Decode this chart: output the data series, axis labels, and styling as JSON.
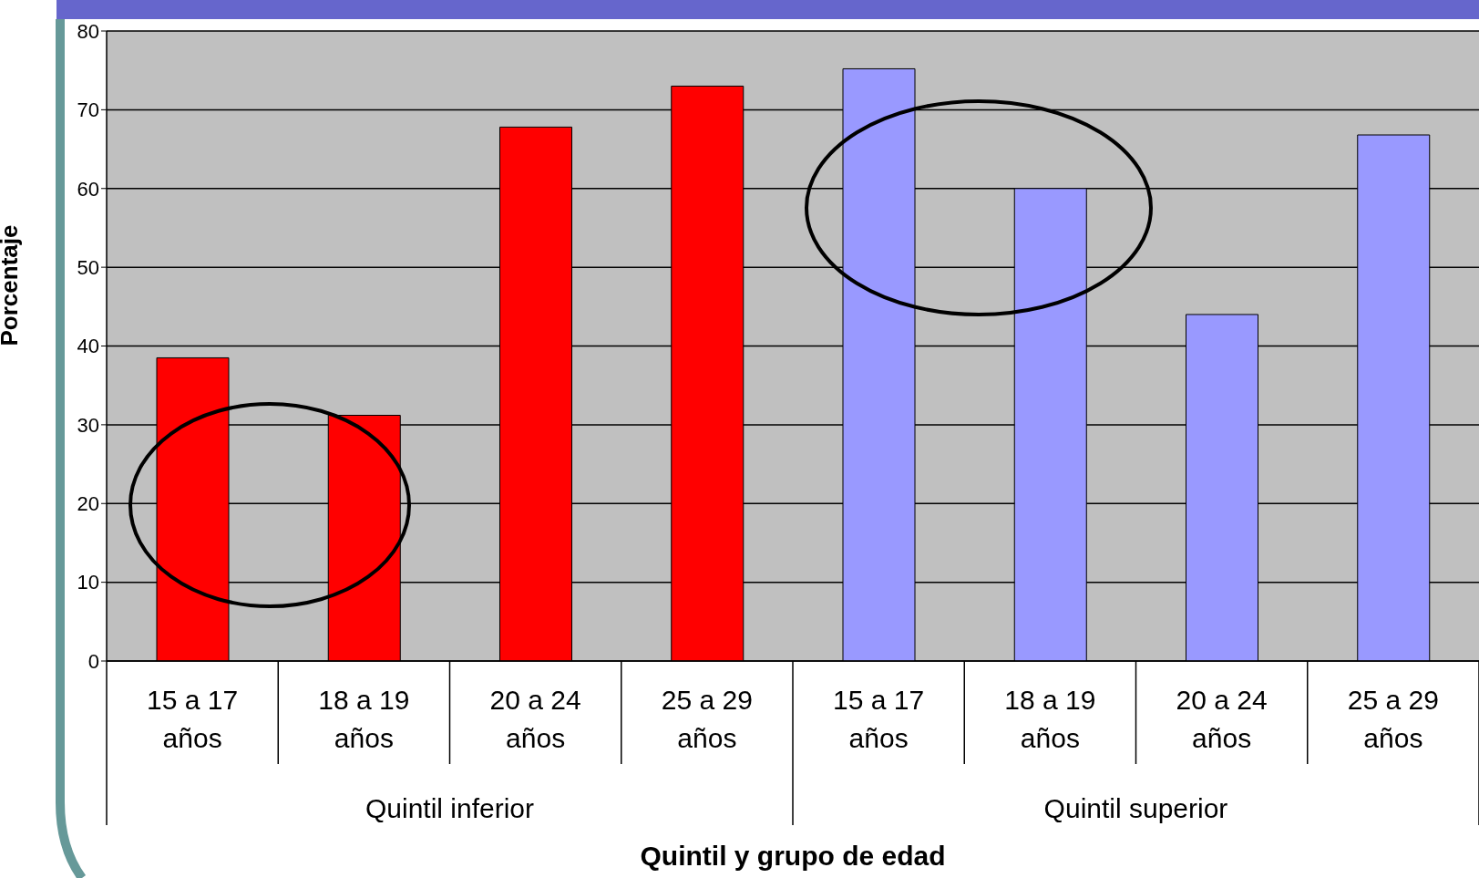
{
  "chart_data": {
    "type": "bar",
    "xlabel": "Quintil y grupo de edad",
    "ylabel": "Porcentaje",
    "categories": [
      "15 a 17 años",
      "18 a 19 años",
      "20 a 24 años",
      "25 a 29 años",
      "15 a 17 años",
      "18 a 19 años",
      "20 a 24 años",
      "25 a 29 años"
    ],
    "values": [
      38.5,
      31.2,
      67.8,
      73,
      75.2,
      60,
      44,
      66.8
    ],
    "colors": [
      "#ff0000",
      "#ff0000",
      "#ff0000",
      "#ff0000",
      "#9999ff",
      "#9999ff",
      "#9999ff",
      "#9999ff"
    ],
    "annotations": [
      "Quintil inferior",
      "Quintil superior"
    ],
    "ylim": [
      0,
      80
    ],
    "yticks": [
      0,
      10,
      20,
      30,
      40,
      50,
      60,
      70,
      80
    ],
    "grid": "y",
    "legend": false
  }
}
